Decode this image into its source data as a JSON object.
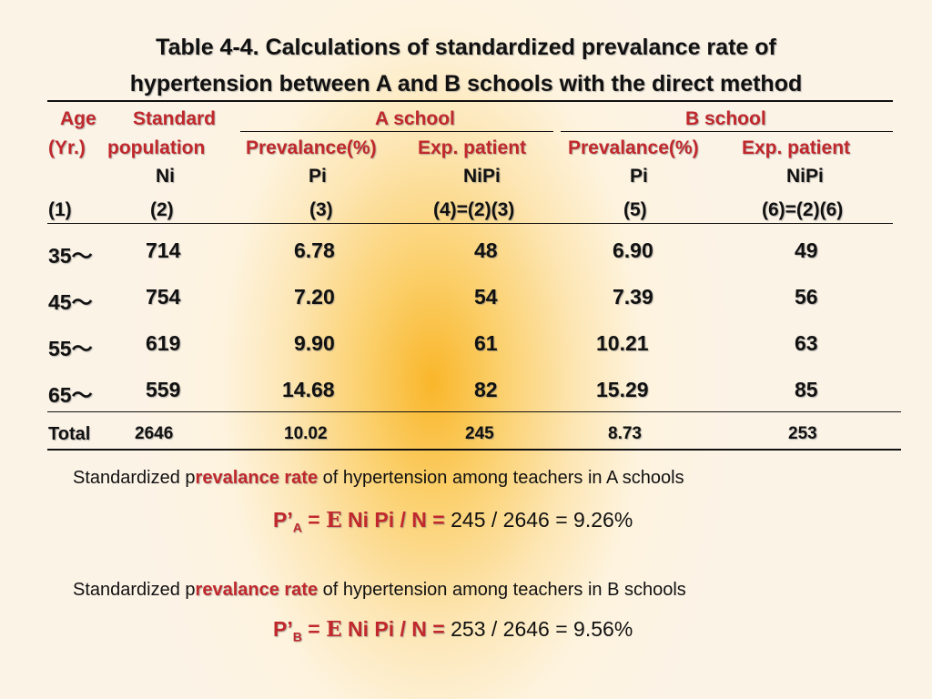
{
  "title_line1": "Table 4-4. Calculations of standardized prevalance rate of",
  "title_line2": "hypertension between A and B schools with the direct method",
  "headers": {
    "age": "Age",
    "yr": "(Yr.)",
    "standard": "Standard",
    "population": "population",
    "ni": "Ni",
    "a_school": "A school",
    "b_school": "B school",
    "a_prev": "Prevalance(%)",
    "a_exp": "Exp. patient",
    "b_prev": "Prevalance(%)",
    "b_exp": "Exp. patient",
    "a_pi": "Pi",
    "a_nipi": "NiPi",
    "b_pi": "Pi",
    "b_nipi": "NiPi",
    "n1": "(1)",
    "n2": "(2)",
    "n3": "(3)",
    "n4": "(4)=(2)(3)",
    "n5": "(5)",
    "n6": "(6)=(2)(6)"
  },
  "rows": [
    {
      "age": "35～",
      "ni": "714",
      "a_pi": "6.78",
      "a_nipi": "48",
      "b_pi": "6.90",
      "b_nipi": "49"
    },
    {
      "age": "45～",
      "ni": "754",
      "a_pi": "7.20",
      "a_nipi": "54",
      "b_pi": "7.39",
      "b_nipi": "56"
    },
    {
      "age": "55～",
      "ni": "619",
      "a_pi": "9.90",
      "a_nipi": "61",
      "b_pi": "10.21",
      "b_nipi": "63"
    },
    {
      "age": "65～",
      "ni": "559",
      "a_pi": "14.68",
      "a_nipi": "82",
      "b_pi": "15.29",
      "b_nipi": "85"
    }
  ],
  "total": {
    "label": "Total",
    "ni": "2646",
    "a_pi": "10.02",
    "a_nipi": "245",
    "b_pi": "8.73",
    "b_nipi": "253"
  },
  "para_a": {
    "pre": "Standardized p",
    "red": "revalance rate",
    "post": " of hypertension among teachers in A schools"
  },
  "formula_a": {
    "p": "P’",
    "sub": "A",
    "eq": " = ",
    "sigma": "Ε",
    "expr": " Ni Pi / N = ",
    "calc": "245 / 2646 = 9.26%"
  },
  "para_b": {
    "pre": "Standardized p",
    "red": "revalance rate",
    "post": " of hypertension among teachers in B schools"
  },
  "formula_b": {
    "p": "P’",
    "sub": "B",
    "eq": " = ",
    "sigma": "Ε",
    "expr": " Ni Pi / N = ",
    "calc": "253 / 2646 = 9.56%"
  }
}
